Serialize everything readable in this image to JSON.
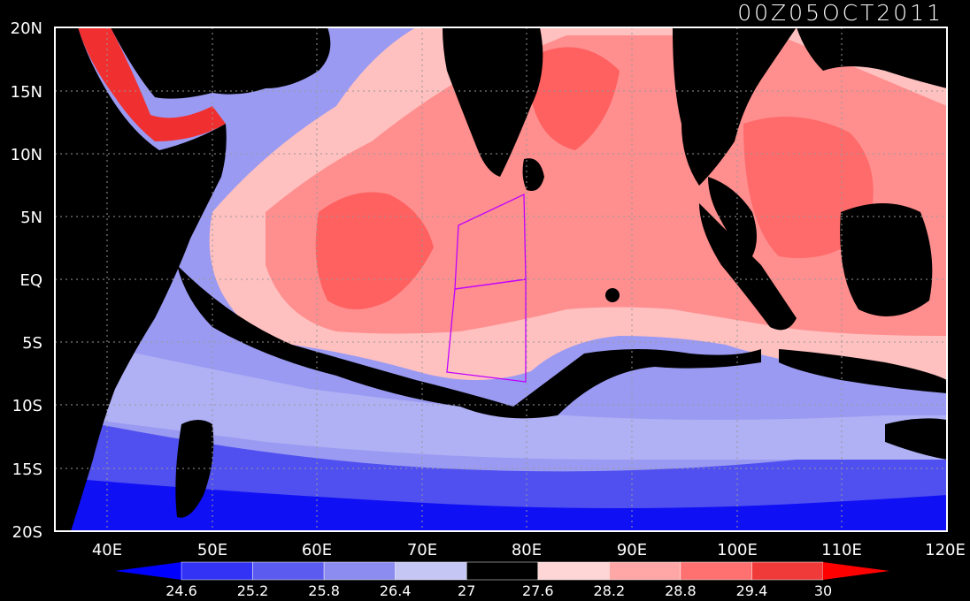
{
  "map": {
    "timestamp": "00Z05OCT2011",
    "lat_labels": [
      "20N",
      "15N",
      "10N",
      "5N",
      "EQ",
      "5S",
      "10S",
      "15S",
      "20S"
    ],
    "lon_labels": [
      "40E",
      "50E",
      "60E",
      "70E",
      "80E",
      "90E",
      "100E",
      "110E",
      "120E"
    ],
    "colorbar": {
      "labels": [
        "24.6",
        "25.2",
        "25.8",
        "26.4",
        "27",
        "27.6",
        "28.2",
        "28.8",
        "29.4",
        "30"
      ],
      "colors": [
        "#0000ff",
        "#3333f5",
        "#5b5bf0",
        "#8c8cf0",
        "#c6c6f5",
        "#000000",
        "#ffd6d6",
        "#ffa6a6",
        "#ff7070",
        "#f03a3a",
        "#ff0000"
      ]
    },
    "colors": {
      "land": "#000000",
      "warm": "#ff7a7a",
      "cool": "#8080f0",
      "region_outline": "#c000ff"
    }
  }
}
